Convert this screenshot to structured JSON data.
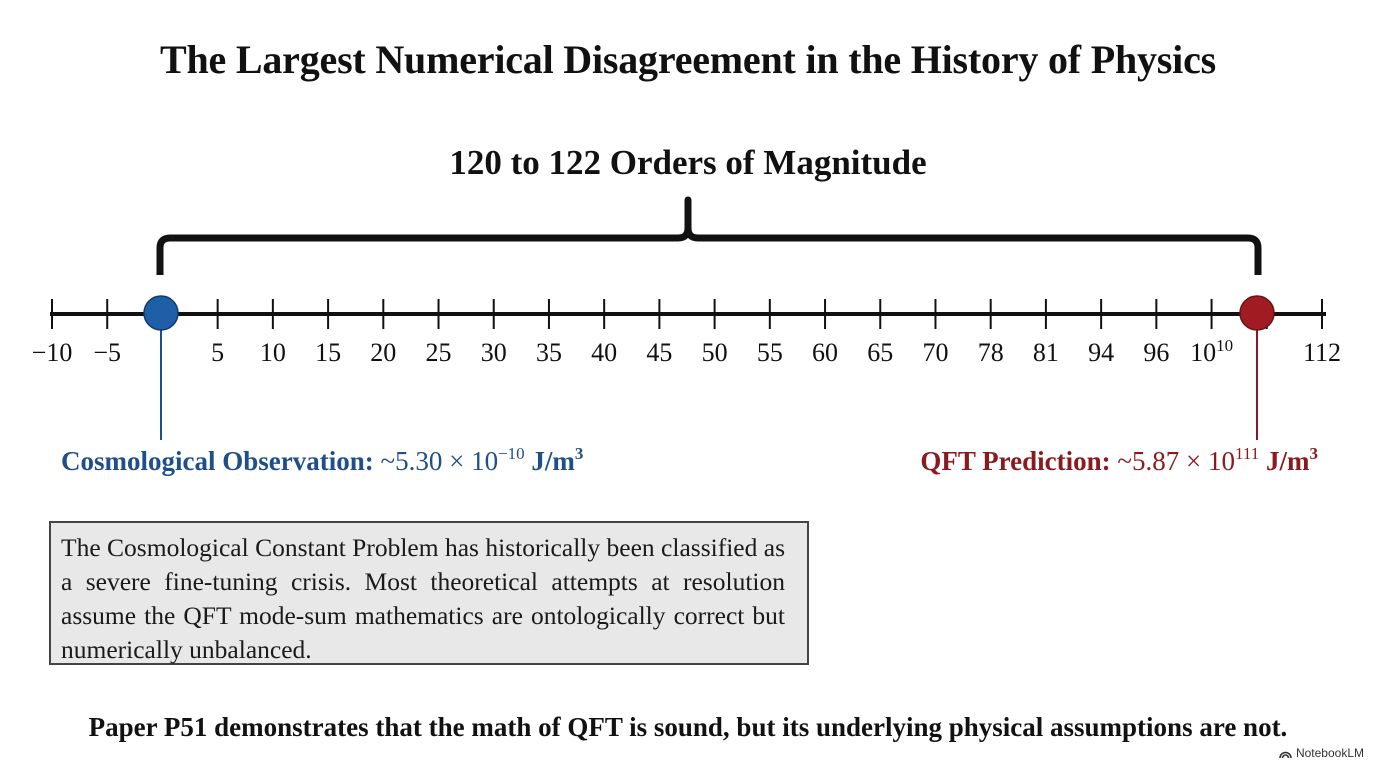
{
  "title": "The Largest Numerical Disagreement in the History of Physics",
  "brace_label": "120 to 122 Orders of Magnitude",
  "axis": {
    "ticks": [
      "−10",
      "−5",
      "",
      "5",
      "10",
      "15",
      "20",
      "25",
      "30",
      "35",
      "40",
      "45",
      "50",
      "55",
      "60",
      "65",
      "70",
      "78",
      "81",
      "94",
      "96",
      "10",
      "",
      "112"
    ],
    "tick_10_10_exponent": "10"
  },
  "observation": {
    "label": "Cosmological Observation:",
    "value_prefix": "~5.30 × 10",
    "exponent": "−10",
    "unit": "J/m",
    "unit_exponent": "3",
    "color": "#1f4f8a"
  },
  "prediction": {
    "label": "QFT Prediction:",
    "value_prefix": "~5.87 × 10",
    "exponent": "111",
    "unit": "J/m",
    "unit_exponent": "3",
    "color": "#8b1a1e"
  },
  "note": "The Cosmological Constant Problem has historically been classified as a severe fine-tuning crisis. Most theoretical attempts at resolution assume the QFT mode-sum mathematics are ontologically correct but numerically unbalanced.",
  "conclusion": "Paper P51 demonstrates that the math of QFT is sound, but its underlying physical assumptions are not.",
  "watermark": "NotebookLM"
}
